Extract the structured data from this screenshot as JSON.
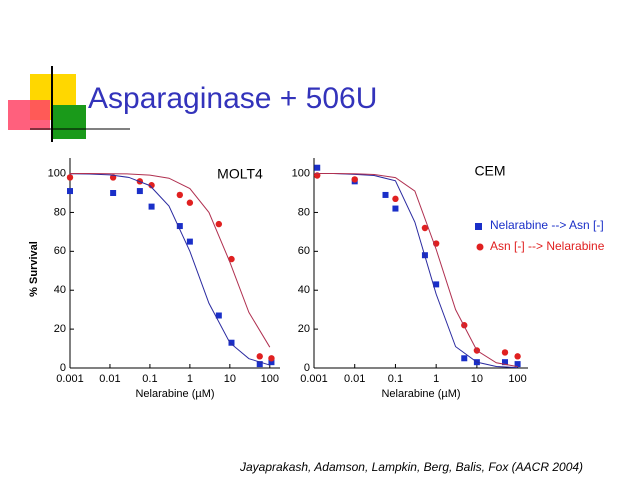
{
  "title": "Asparaginase + 506U",
  "citation": "Jayaprakash, Adamson, Lampkin, Berg, Balis, Fox (AACR 2004)",
  "chart_data": [
    {
      "type": "scatter",
      "title": "MOLT4",
      "y_label": "% Survival",
      "x_label": "Nelarabine (µM)",
      "x_scale": "log",
      "xlim": [
        0.001,
        180
      ],
      "ylim": [
        0,
        108
      ],
      "xticks": [
        0.001,
        0.01,
        0.1,
        1,
        10,
        100
      ],
      "yticks": [
        0,
        20,
        40,
        60,
        80,
        100
      ],
      "series": [
        {
          "marker": "square",
          "color": "#1a2fc8",
          "x": [
            0.001,
            0.012,
            0.056,
            0.11,
            0.56,
            1.0,
            5.3,
            11,
            56,
            110
          ],
          "values": [
            91,
            90,
            91,
            83,
            73,
            65,
            27,
            13,
            2,
            3
          ]
        },
        {
          "marker": "circle",
          "color": "#e02020",
          "x": [
            0.001,
            0.012,
            0.056,
            0.11,
            0.56,
            1.0,
            5.3,
            11,
            56,
            110
          ],
          "values": [
            98,
            98,
            96,
            94,
            89,
            85,
            74,
            56,
            6,
            5
          ]
        },
        {
          "marker": "line",
          "color": "#2a2aa0",
          "x": [
            0.001,
            0.003,
            0.01,
            0.03,
            0.1,
            0.3,
            1,
            3,
            10,
            30,
            100
          ],
          "values": [
            99.9,
            99.8,
            99.3,
            98,
            93.8,
            83.3,
            60,
            33.3,
            13,
            4.8,
            1.5
          ]
        },
        {
          "marker": "line",
          "color": "#b03050",
          "x": [
            0.001,
            0.003,
            0.01,
            0.03,
            0.1,
            0.3,
            1,
            3,
            10,
            30,
            100
          ],
          "values": [
            100,
            100,
            99.9,
            99.8,
            99.2,
            97.6,
            92.3,
            80,
            54.5,
            28.6,
            10.7
          ]
        }
      ]
    },
    {
      "type": "scatter",
      "title": "CEM",
      "x_label": "Nelarabine (µM)",
      "x_scale": "log",
      "xlim": [
        0.001,
        180
      ],
      "ylim": [
        0,
        108
      ],
      "xticks": [
        0.001,
        0.01,
        0.1,
        1,
        10,
        100
      ],
      "yticks": [
        0,
        20,
        40,
        60,
        80,
        100
      ],
      "series": [
        {
          "name": "Nelarabine --> Asn [-]",
          "marker": "square",
          "color": "#1a2fc8",
          "x": [
            0.0012,
            0.01,
            0.057,
            0.1,
            0.53,
            1.0,
            4.9,
            10,
            49,
            100
          ],
          "values": [
            103,
            96,
            89,
            82,
            58,
            43,
            5,
            3,
            3,
            2
          ]
        },
        {
          "name": "Asn [-] --> Nelarabine",
          "marker": "circle",
          "color": "#e02020",
          "x": [
            0.0012,
            0.01,
            0.1,
            0.53,
            1.0,
            4.9,
            10,
            49,
            100
          ],
          "values": [
            99,
            97,
            87,
            72,
            64,
            22,
            9,
            8,
            6
          ]
        },
        {
          "marker": "line",
          "color": "#2a2aa0",
          "x": [
            0.001,
            0.003,
            0.01,
            0.03,
            0.1,
            0.3,
            1,
            3,
            10,
            30,
            100
          ],
          "values": [
            100,
            100,
            99.6,
            99,
            96.3,
            75,
            38,
            11,
            3,
            0.8,
            0.2
          ]
        },
        {
          "marker": "line",
          "color": "#b03050",
          "x": [
            0.001,
            0.003,
            0.01,
            0.03,
            0.1,
            0.3,
            1,
            3,
            10,
            30,
            100
          ],
          "values": [
            100,
            100,
            99.9,
            99.5,
            97.9,
            91,
            61,
            30,
            9,
            2.7,
            0.7
          ]
        }
      ]
    }
  ]
}
